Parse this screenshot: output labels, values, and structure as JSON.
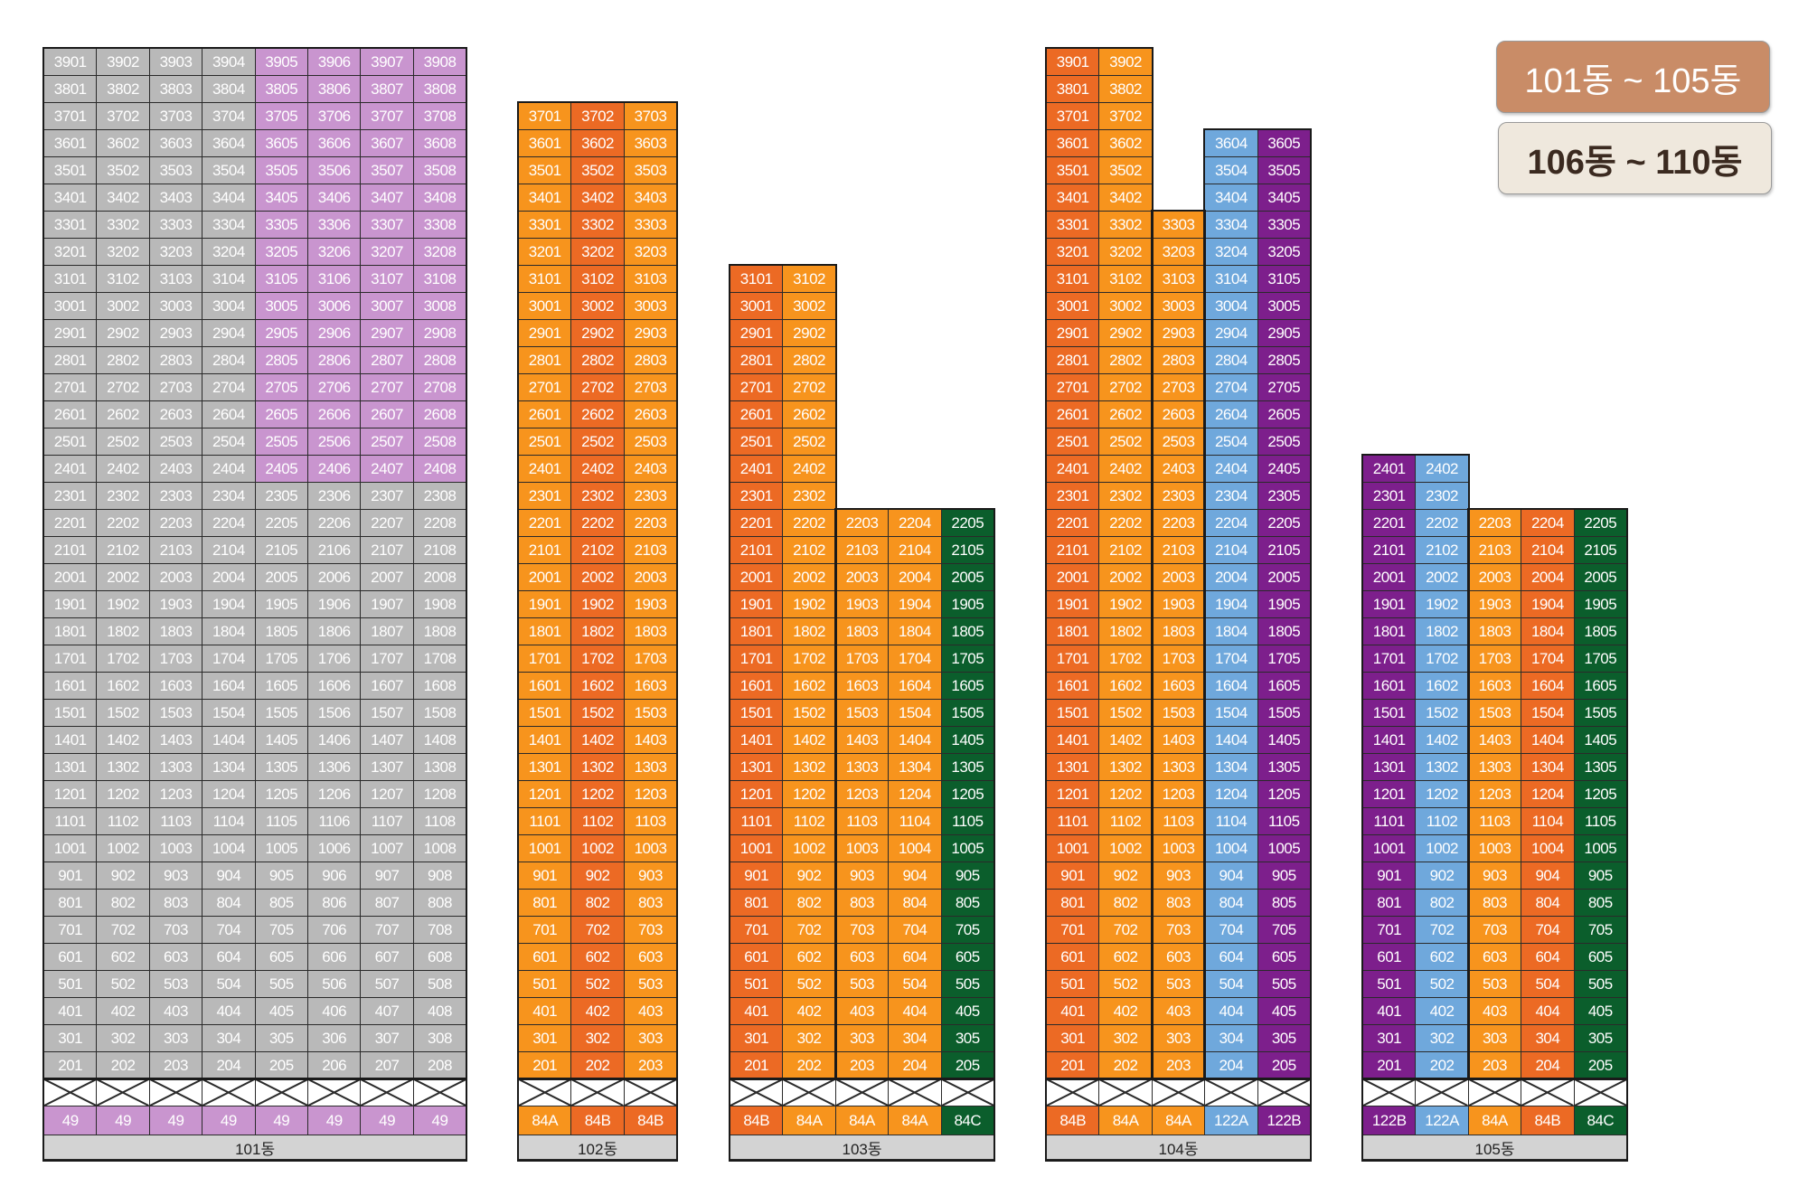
{
  "colors": {
    "gray": "#b9b9b9",
    "lavender": "#c995cf",
    "orange": "#f7941d",
    "redorange": "#ec6a24",
    "green": "#0b5e2c",
    "blue": "#6fa8dc",
    "purple": "#7d1f8c",
    "label_bg": "#d3d3d3"
  },
  "legend": [
    {
      "label": "101동 ~ 105동",
      "bg": "#c98c67",
      "fg": "#ffffff"
    },
    {
      "label": "106동 ~ 110동",
      "bg": "#efe8dd",
      "fg": "#3b2a20"
    }
  ],
  "buildings": [
    {
      "name": "101동",
      "columns": [
        {
          "top": 39,
          "color": "gray",
          "unit": "49",
          "unit_color": "lavender",
          "upper_color": "gray"
        },
        {
          "top": 39,
          "color": "gray",
          "unit": "49",
          "unit_color": "lavender",
          "upper_color": "gray"
        },
        {
          "top": 39,
          "color": "gray",
          "unit": "49",
          "unit_color": "lavender",
          "upper_color": "gray"
        },
        {
          "top": 39,
          "color": "gray",
          "unit": "49",
          "unit_color": "lavender",
          "upper_color": "gray"
        },
        {
          "top": 39,
          "color": "gray",
          "unit": "49",
          "unit_color": "lavender",
          "upper_color": "lavender"
        },
        {
          "top": 39,
          "color": "gray",
          "unit": "49",
          "unit_color": "lavender",
          "upper_color": "lavender"
        },
        {
          "top": 39,
          "color": "gray",
          "unit": "49",
          "unit_color": "lavender",
          "upper_color": "lavender"
        },
        {
          "top": 39,
          "color": "gray",
          "unit": "49",
          "unit_color": "lavender",
          "upper_color": "lavender"
        }
      ],
      "upper_from": 24
    },
    {
      "name": "102동",
      "columns": [
        {
          "top": 37,
          "color": "orange",
          "unit": "84A",
          "unit_color": "orange"
        },
        {
          "top": 37,
          "color": "redorange",
          "unit": "84B",
          "unit_color": "redorange"
        },
        {
          "top": 37,
          "color": "orange",
          "unit": "84B",
          "unit_color": "redorange"
        }
      ]
    },
    {
      "name": "103동",
      "columns": [
        {
          "top": 31,
          "color": "redorange",
          "unit": "84B",
          "unit_color": "redorange"
        },
        {
          "top": 31,
          "color": "orange",
          "unit": "84A",
          "unit_color": "orange"
        },
        {
          "top": 22,
          "color": "orange",
          "unit": "84A",
          "unit_color": "orange"
        },
        {
          "top": 22,
          "color": "orange",
          "unit": "84A",
          "unit_color": "orange"
        },
        {
          "top": 22,
          "color": "green",
          "unit": "84C",
          "unit_color": "green"
        }
      ]
    },
    {
      "name": "104동",
      "columns": [
        {
          "top": 39,
          "color": "redorange",
          "unit": "84B",
          "unit_color": "redorange"
        },
        {
          "top": 39,
          "color": "orange",
          "unit": "84A",
          "unit_color": "orange"
        },
        {
          "top": 33,
          "color": "orange",
          "unit": "84A",
          "unit_color": "orange"
        },
        {
          "top": 36,
          "color": "blue",
          "unit": "122A",
          "unit_color": "blue"
        },
        {
          "top": 36,
          "color": "purple",
          "unit": "122B",
          "unit_color": "purple"
        }
      ]
    },
    {
      "name": "105동",
      "columns": [
        {
          "top": 24,
          "color": "purple",
          "unit": "122B",
          "unit_color": "purple"
        },
        {
          "top": 24,
          "color": "blue",
          "unit": "122A",
          "unit_color": "blue"
        },
        {
          "top": 22,
          "color": "orange",
          "unit": "84A",
          "unit_color": "orange"
        },
        {
          "top": 22,
          "color": "redorange",
          "unit": "84B",
          "unit_color": "redorange"
        },
        {
          "top": 22,
          "color": "green",
          "unit": "84C",
          "unit_color": "green"
        }
      ]
    }
  ]
}
